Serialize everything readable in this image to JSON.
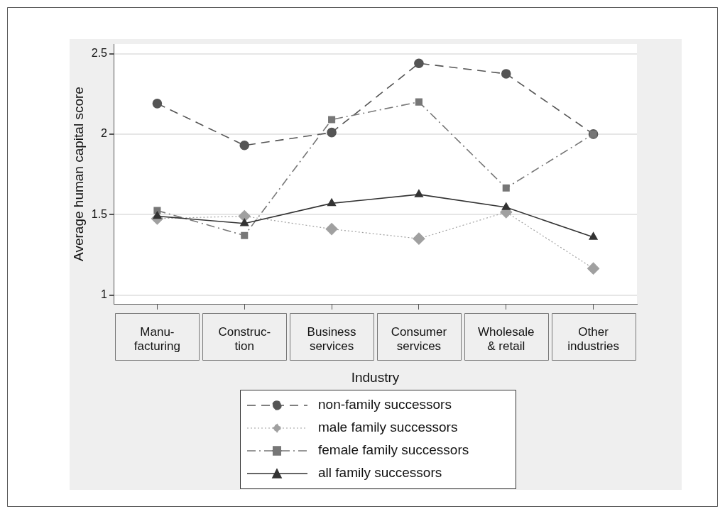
{
  "chart_data": {
    "type": "line",
    "xlabel": "Industry",
    "ylabel": "Average human capital score",
    "categories": [
      "Manu-\nfacturing",
      "Construc-\ntion",
      "Business\nservices",
      "Consumer\nservices",
      "Wholesale\n& retail",
      "Other\nindustries"
    ],
    "series": [
      {
        "name": "non-family successors",
        "color": "#555555",
        "marker": "circle",
        "line_style": "dashed",
        "values": [
          2.19,
          1.93,
          2.01,
          2.44,
          2.375,
          2.0
        ]
      },
      {
        "name": "male family successors",
        "color": "#a0a0a0",
        "marker": "diamond",
        "line_style": "dotted",
        "values": [
          1.475,
          1.49,
          1.41,
          1.35,
          1.515,
          1.165
        ]
      },
      {
        "name": "female family successors",
        "color": "#777777",
        "marker": "square",
        "line_style": "dashdot",
        "values": [
          1.525,
          1.37,
          2.09,
          2.2,
          1.665,
          2.0
        ]
      },
      {
        "name": "all family successors",
        "color": "#333333",
        "marker": "triangle",
        "line_style": "solid",
        "values": [
          1.49,
          1.445,
          1.57,
          1.625,
          1.545,
          1.36
        ]
      }
    ],
    "ylim": [
      0.945,
      2.56
    ],
    "yticks": [
      1,
      1.5,
      2,
      2.5
    ],
    "grid": "y",
    "legend": "bottom"
  }
}
